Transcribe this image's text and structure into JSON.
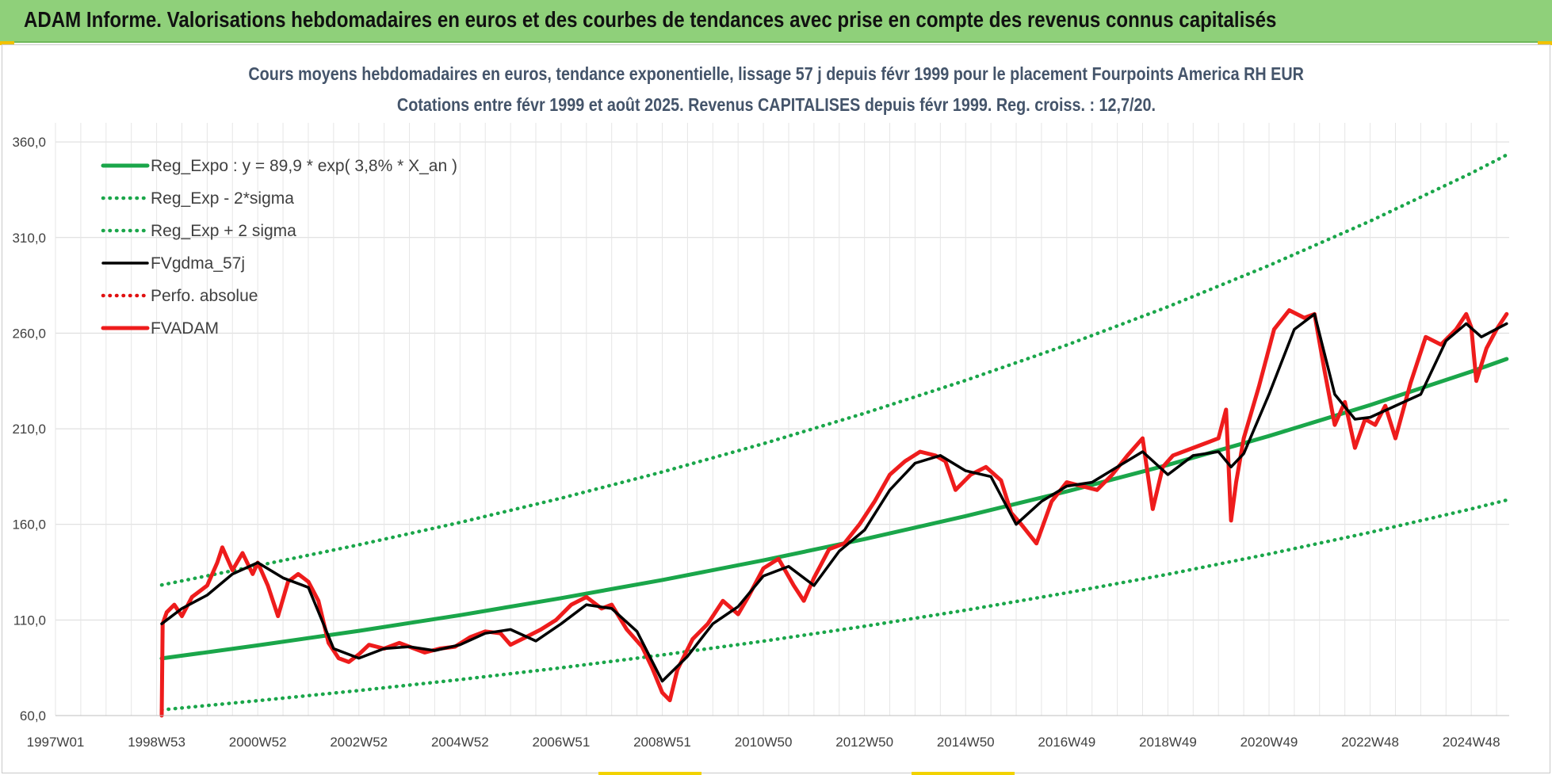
{
  "banner": {
    "title": "ADAM Informe. Valorisations hebdomadaires en euros et des courbes de tendances avec prise en compte des revenus connus capitalisés"
  },
  "chart_data": {
    "type": "line",
    "title": "Cours moyens hebdomadaires en euros, tendance exponentielle, lissage 57 j depuis févr 1999 pour le placement Fourpoints America RH EUR",
    "subtitle": "Cotations entre févr 1999 et août 2025. Revenus CAPITALISES depuis févr 1999. Reg. croiss. : 12,7/20.",
    "xlabel": "",
    "ylabel": "",
    "ylim": [
      60,
      370
    ],
    "xlim": [
      1997.0,
      2025.75
    ],
    "grid": true,
    "legend_position": "top-left",
    "x_tick_labels": [
      "1997W01",
      "1998W53",
      "2000W52",
      "2002W52",
      "2004W52",
      "2006W51",
      "2008W51",
      "2010W50",
      "2012W50",
      "2014W50",
      "2016W49",
      "2018W49",
      "2020W49",
      "2022W48",
      "2024W48"
    ],
    "x_tick_years": [
      1997.0,
      1999.0,
      2001.0,
      2003.0,
      2005.0,
      2007.0,
      2009.0,
      2011.0,
      2013.0,
      2015.0,
      2017.0,
      2019.0,
      2021.0,
      2023.0,
      2025.0
    ],
    "y_ticks": [
      60,
      110,
      160,
      210,
      260,
      310,
      360
    ],
    "y_tick_labels": [
      "60,0",
      "110,0",
      "160,0",
      "210,0",
      "260,0",
      "310,0",
      "360,0"
    ],
    "series": [
      {
        "name": "Reg_Expo : y = 89,9 * exp( 3,8% *  X_an )",
        "color": "#1aa64a",
        "style": "solid-thick",
        "x": [
          1999.1,
          2001,
          2003,
          2005,
          2007,
          2009,
          2011,
          2013,
          2015,
          2017,
          2019,
          2021,
          2023,
          2025,
          2025.7
        ],
        "y": [
          89.9,
          96.7,
          104.3,
          112.5,
          121.4,
          130.9,
          141.2,
          152.3,
          164.3,
          177.2,
          191.1,
          206.2,
          222.4,
          239.9,
          246.5
        ]
      },
      {
        "name": "Reg_Exp - 2*sigma",
        "color": "#1aa64a",
        "style": "dotted",
        "x": [
          1999.1,
          2001,
          2003,
          2005,
          2007,
          2009,
          2011,
          2013,
          2015,
          2017,
          2019,
          2021,
          2023,
          2025,
          2025.7
        ],
        "y": [
          63.0,
          67.8,
          73.1,
          78.8,
          85.0,
          91.7,
          98.9,
          106.7,
          115.1,
          124.2,
          133.9,
          144.5,
          155.8,
          168.1,
          172.7
        ]
      },
      {
        "name": "Reg_Exp + 2 sigma",
        "color": "#1aa64a",
        "style": "dotted",
        "x": [
          1999.1,
          2001,
          2003,
          2005,
          2007,
          2009,
          2011,
          2013,
          2015,
          2017,
          2019,
          2021,
          2023,
          2025,
          2025.7
        ],
        "y": [
          128.3,
          138.4,
          149.3,
          161.0,
          173.7,
          187.4,
          202.2,
          218.1,
          235.3,
          253.8,
          273.8,
          295.4,
          318.6,
          343.7,
          353.2
        ]
      },
      {
        "name": "FVgdma_57j",
        "color": "#000000",
        "style": "solid",
        "x": [
          1999.1,
          1999.5,
          2000.0,
          2000.5,
          2001.0,
          2001.5,
          2002.0,
          2002.5,
          2003.0,
          2003.5,
          2004.0,
          2004.5,
          2005.0,
          2005.5,
          2006.0,
          2006.5,
          2007.0,
          2007.5,
          2008.0,
          2008.5,
          2009.0,
          2009.5,
          2010.0,
          2010.5,
          2011.0,
          2011.5,
          2012.0,
          2012.5,
          2013.0,
          2013.5,
          2014.0,
          2014.5,
          2015.0,
          2015.5,
          2016.0,
          2016.5,
          2017.0,
          2017.5,
          2018.0,
          2018.5,
          2019.0,
          2019.5,
          2020.0,
          2020.25,
          2020.5,
          2021.0,
          2021.5,
          2021.9,
          2022.3,
          2022.7,
          2023.0,
          2023.5,
          2024.0,
          2024.5,
          2024.9,
          2025.2,
          2025.7
        ],
        "y": [
          108,
          116,
          123,
          134,
          140,
          132,
          127,
          95,
          90,
          95,
          96,
          94,
          97,
          103,
          105,
          99,
          108,
          118,
          116,
          104,
          78,
          91,
          108,
          117,
          133,
          138,
          128,
          146,
          157,
          178,
          192,
          196,
          188,
          185,
          160,
          172,
          180,
          182,
          190,
          198,
          186,
          196,
          198,
          190,
          197,
          228,
          262,
          270,
          228,
          215,
          216,
          222,
          228,
          256,
          265,
          258,
          265
        ]
      },
      {
        "name": "Perfo. absolue",
        "color": "#e01010",
        "style": "dotted",
        "x": [],
        "y": []
      },
      {
        "name": "FVADAM",
        "color": "#ee1c1c",
        "style": "solid-thick",
        "x": [
          1999.1,
          1999.12,
          1999.2,
          1999.35,
          1999.5,
          1999.7,
          2000.0,
          2000.2,
          2000.3,
          2000.5,
          2000.7,
          2000.9,
          2001.0,
          2001.2,
          2001.4,
          2001.6,
          2001.8,
          2002.0,
          2002.2,
          2002.4,
          2002.6,
          2002.8,
          2003.0,
          2003.2,
          2003.5,
          2003.8,
          2004.0,
          2004.3,
          2004.6,
          2004.9,
          2005.2,
          2005.5,
          2005.8,
          2006.0,
          2006.3,
          2006.6,
          2006.9,
          2007.2,
          2007.5,
          2007.8,
          2008.0,
          2008.3,
          2008.6,
          2008.8,
          2009.0,
          2009.15,
          2009.3,
          2009.6,
          2009.9,
          2010.2,
          2010.5,
          2010.7,
          2011.0,
          2011.3,
          2011.6,
          2011.8,
          2012.0,
          2012.3,
          2012.6,
          2012.9,
          2013.2,
          2013.5,
          2013.8,
          2014.1,
          2014.4,
          2014.6,
          2014.8,
          2015.1,
          2015.4,
          2015.7,
          2015.9,
          2016.1,
          2016.4,
          2016.7,
          2017.0,
          2017.3,
          2017.6,
          2017.9,
          2018.2,
          2018.5,
          2018.7,
          2018.9,
          2019.1,
          2019.4,
          2019.7,
          2020.0,
          2020.15,
          2020.25,
          2020.35,
          2020.5,
          2020.8,
          2021.1,
          2021.4,
          2021.7,
          2021.9,
          2022.1,
          2022.3,
          2022.5,
          2022.7,
          2022.9,
          2023.1,
          2023.3,
          2023.5,
          2023.8,
          2024.1,
          2024.4,
          2024.7,
          2024.9,
          2025.0,
          2025.1,
          2025.3,
          2025.5,
          2025.7
        ],
        "y": [
          60,
          108,
          114,
          118,
          112,
          122,
          128,
          140,
          148,
          136,
          145,
          134,
          140,
          128,
          112,
          130,
          134,
          130,
          120,
          98,
          90,
          88,
          92,
          97,
          95,
          98,
          96,
          93,
          95,
          96,
          101,
          104,
          103,
          97,
          101,
          105,
          110,
          118,
          122,
          116,
          118,
          105,
          96,
          85,
          72,
          68,
          84,
          100,
          108,
          120,
          113,
          122,
          137,
          142,
          128,
          120,
          132,
          147,
          150,
          160,
          172,
          186,
          193,
          198,
          196,
          193,
          178,
          186,
          190,
          183,
          166,
          160,
          150,
          172,
          182,
          180,
          178,
          186,
          196,
          205,
          168,
          190,
          196,
          199,
          202,
          205,
          220,
          162,
          182,
          205,
          232,
          262,
          272,
          268,
          270,
          240,
          212,
          224,
          200,
          215,
          212,
          222,
          205,
          234,
          258,
          254,
          262,
          270,
          263,
          235,
          252,
          262,
          270
        ]
      }
    ]
  }
}
